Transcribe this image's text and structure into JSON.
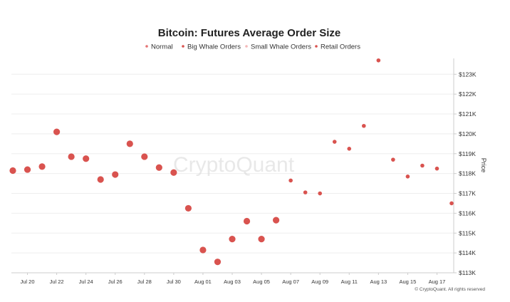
{
  "chart_data": {
    "type": "scatter",
    "title": "Bitcoin: Futures Average Order Size",
    "ylabel": "Price",
    "ylim": [
      113000,
      123800
    ],
    "y_ticks": [
      "$113K",
      "$114K",
      "$115K",
      "$116K",
      "$117K",
      "$118K",
      "$119K",
      "$120K",
      "$121K",
      "$122K",
      "$123K"
    ],
    "y_tick_values": [
      113000,
      114000,
      115000,
      116000,
      117000,
      118000,
      119000,
      120000,
      121000,
      122000,
      123000
    ],
    "x_ticks": [
      "Jul 20",
      "Jul 22",
      "Jul 24",
      "Jul 26",
      "Jul 28",
      "Jul 30",
      "Aug 01",
      "Aug 03",
      "Aug 05",
      "Aug 07",
      "Aug 09",
      "Aug 11",
      "Aug 13",
      "Aug 15",
      "Aug 17"
    ],
    "x_tick_days": [
      1,
      3,
      5,
      7,
      9,
      11,
      13,
      15,
      17,
      19,
      21,
      23,
      25,
      27,
      29
    ],
    "x_range": [
      0.1,
      30.6
    ],
    "legend": [
      {
        "name": "Normal",
        "color": "#e57373"
      },
      {
        "name": "Big Whale Orders",
        "color": "#d9534f"
      },
      {
        "name": "Small Whale Orders",
        "color": "#f3b8b8"
      },
      {
        "name": "Retail Orders",
        "color": "#d9534f"
      }
    ],
    "point_color": "#d9534f",
    "points": [
      {
        "x": 0,
        "y": 118150,
        "category": "Big Whale Orders"
      },
      {
        "x": 1,
        "y": 118200,
        "category": "Big Whale Orders"
      },
      {
        "x": 2,
        "y": 118350,
        "category": "Big Whale Orders"
      },
      {
        "x": 3,
        "y": 120100,
        "category": "Big Whale Orders"
      },
      {
        "x": 4,
        "y": 118850,
        "category": "Big Whale Orders"
      },
      {
        "x": 5,
        "y": 118750,
        "category": "Big Whale Orders"
      },
      {
        "x": 6,
        "y": 117700,
        "category": "Big Whale Orders"
      },
      {
        "x": 7,
        "y": 117950,
        "category": "Big Whale Orders"
      },
      {
        "x": 8,
        "y": 119500,
        "category": "Big Whale Orders"
      },
      {
        "x": 9,
        "y": 118850,
        "category": "Big Whale Orders"
      },
      {
        "x": 10,
        "y": 118300,
        "category": "Big Whale Orders"
      },
      {
        "x": 11,
        "y": 118050,
        "category": "Big Whale Orders"
      },
      {
        "x": 12,
        "y": 116250,
        "category": "Big Whale Orders"
      },
      {
        "x": 13,
        "y": 114150,
        "category": "Big Whale Orders"
      },
      {
        "x": 14,
        "y": 113550,
        "category": "Big Whale Orders"
      },
      {
        "x": 15,
        "y": 114700,
        "category": "Big Whale Orders"
      },
      {
        "x": 16,
        "y": 115600,
        "category": "Big Whale Orders"
      },
      {
        "x": 17,
        "y": 114700,
        "category": "Big Whale Orders"
      },
      {
        "x": 18,
        "y": 115650,
        "category": "Big Whale Orders"
      },
      {
        "x": 19,
        "y": 117650,
        "category": "Retail Orders"
      },
      {
        "x": 20,
        "y": 117050,
        "category": "Retail Orders"
      },
      {
        "x": 21,
        "y": 117000,
        "category": "Retail Orders"
      },
      {
        "x": 22,
        "y": 119600,
        "category": "Retail Orders"
      },
      {
        "x": 23,
        "y": 119250,
        "category": "Retail Orders"
      },
      {
        "x": 24,
        "y": 120400,
        "category": "Retail Orders"
      },
      {
        "x": 25,
        "y": 123700,
        "category": "Retail Orders"
      },
      {
        "x": 26,
        "y": 118700,
        "category": "Retail Orders"
      },
      {
        "x": 27,
        "y": 117850,
        "category": "Retail Orders"
      },
      {
        "x": 28,
        "y": 118400,
        "category": "Retail Orders"
      },
      {
        "x": 29,
        "y": 118250,
        "category": "Retail Orders"
      },
      {
        "x": 30,
        "y": 116500,
        "category": "Retail Orders"
      }
    ],
    "grid": true,
    "legend_position": "top-center"
  },
  "watermark": "CryptoQuant",
  "credit": "© CryptoQuant. All rights reserved"
}
